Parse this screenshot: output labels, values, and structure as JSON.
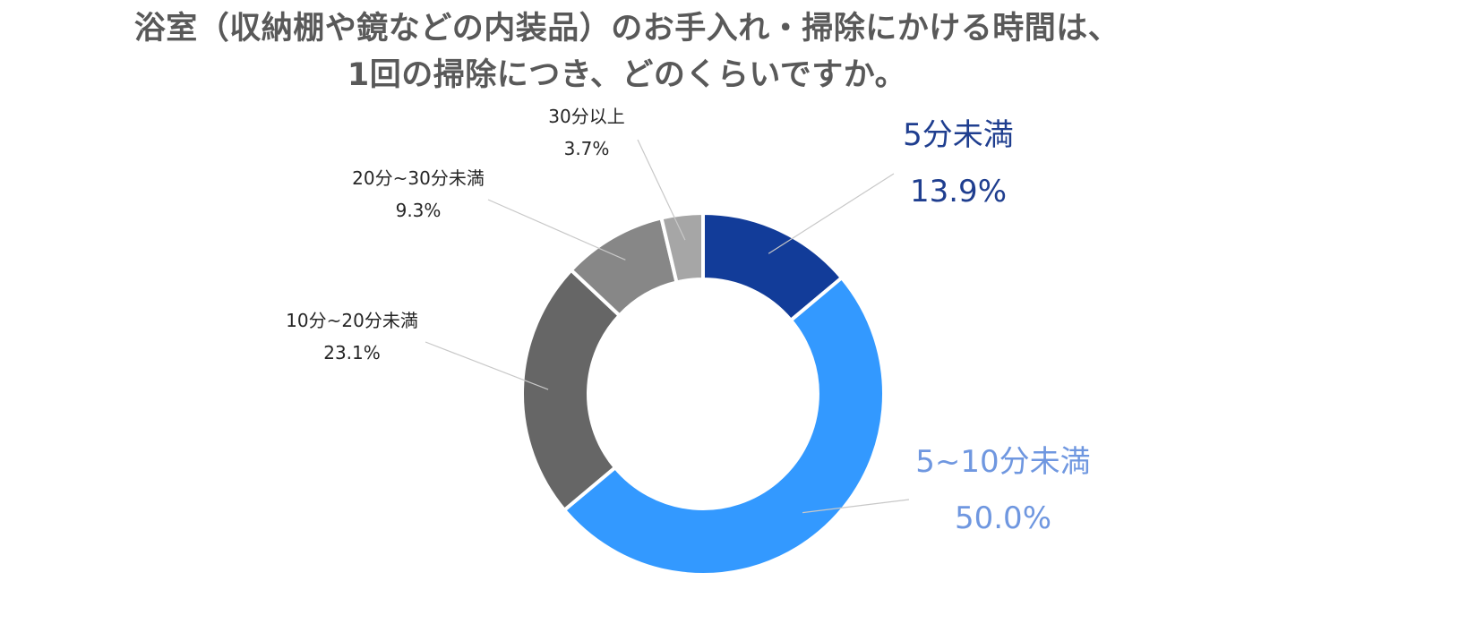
{
  "chart_data": {
    "type": "pie",
    "variant": "donut",
    "title_lines": [
      "浴室（収納棚や鏡などの内装品）のお手入れ・掃除にかける時間は、",
      "1回の掃除につき、どのくらいですか。"
    ],
    "slices": [
      {
        "label": "5分未満",
        "value": 13.9,
        "display": "13.9%",
        "color": "#123c99",
        "label_color": "#1f3e8f",
        "emphasis": true
      },
      {
        "label": "5~10分未満",
        "value": 50.0,
        "display": "50.0%",
        "color": "#3399ff",
        "label_color": "#6f97e0",
        "emphasis": true
      },
      {
        "label": "10分~20分未満",
        "value": 23.1,
        "display": "23.1%",
        "color": "#666666",
        "label_color": "#262626",
        "emphasis": false
      },
      {
        "label": "20分~30分未満",
        "value": 9.3,
        "display": "9.3%",
        "color": "#878787",
        "label_color": "#262626",
        "emphasis": false
      },
      {
        "label": "30分以上",
        "value": 3.7,
        "display": "3.7%",
        "color": "#a6a6a6",
        "label_color": "#262626",
        "emphasis": false
      }
    ],
    "start_angle": "top",
    "direction": "clockwise",
    "legend": "none",
    "leader_line_color": "#c8c8c8"
  }
}
